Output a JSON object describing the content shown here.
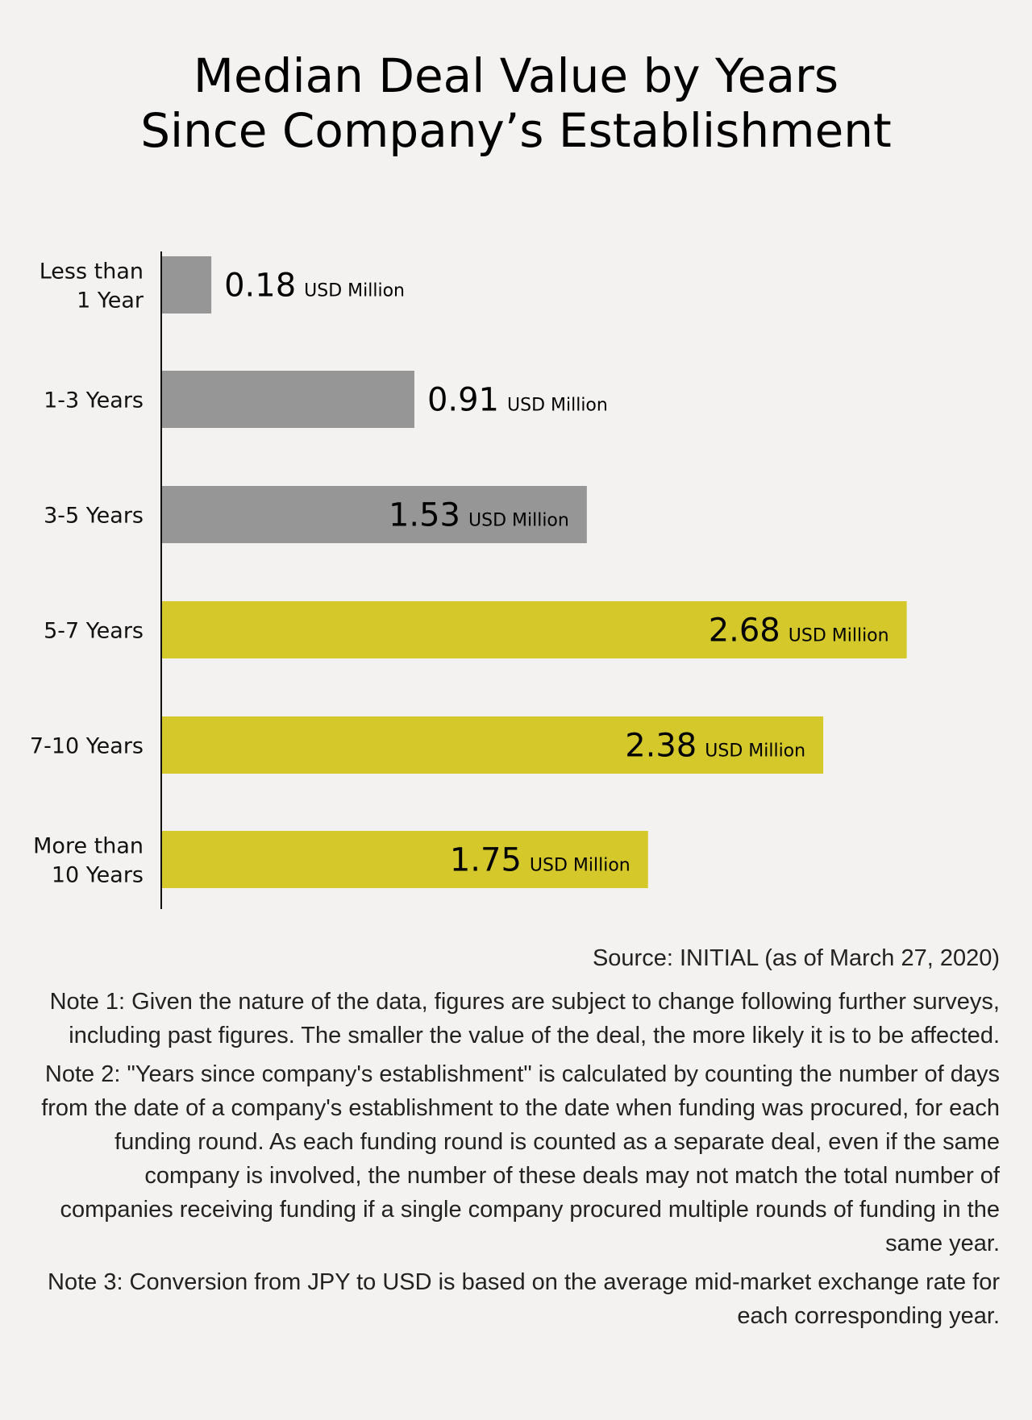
{
  "chart_data": {
    "type": "bar",
    "orientation": "horizontal",
    "title": "Median Deal Value by Years Since Company’s Establishment",
    "title_lines": [
      "Median Deal Value by Years",
      "Since Company’s Establishment"
    ],
    "categories": [
      "Less than 1 Year",
      "1-3 Years",
      "3-5 Years",
      "5-7 Years",
      "7-10 Years",
      "More than 10 Years"
    ],
    "category_lines": [
      [
        "Less than",
        "1 Year"
      ],
      [
        "1-3 Years"
      ],
      [
        "3-5 Years"
      ],
      [
        "5-7 Years"
      ],
      [
        "7-10 Years"
      ],
      [
        "More than",
        "10 Years"
      ]
    ],
    "values": [
      0.18,
      0.91,
      1.53,
      2.68,
      2.38,
      1.75
    ],
    "value_labels": [
      "0.18",
      "0.91",
      "1.53",
      "2.68",
      "2.38",
      "1.75"
    ],
    "unit": "USD Million",
    "xlim": [
      0,
      3.0
    ],
    "colors": [
      "#969696",
      "#969696",
      "#969696",
      "#d4c82b",
      "#d4c82b",
      "#d4c82b"
    ],
    "grid": false,
    "legend": "none"
  },
  "notes": {
    "source": "Source: INITIAL (as of March 27, 2020)",
    "note1": "Note 1: Given the nature of the data, figures are subject to change following further surveys, including past figures. The smaller the value of the deal, the more likely it is to be affected.",
    "note2": "Note 2: \"Years since company's establishment\" is calculated by counting the number of days from the date of a company's establishment to the date when funding was procured, for each funding round. As each funding round is counted as a separate deal, even if the same company is involved, the number of these deals may not match the total number of companies receiving funding if a single company procured multiple rounds of funding in the same year.",
    "note3": "Note 3: Conversion from JPY to USD is based on the average mid-market exchange rate for each corresponding year."
  }
}
